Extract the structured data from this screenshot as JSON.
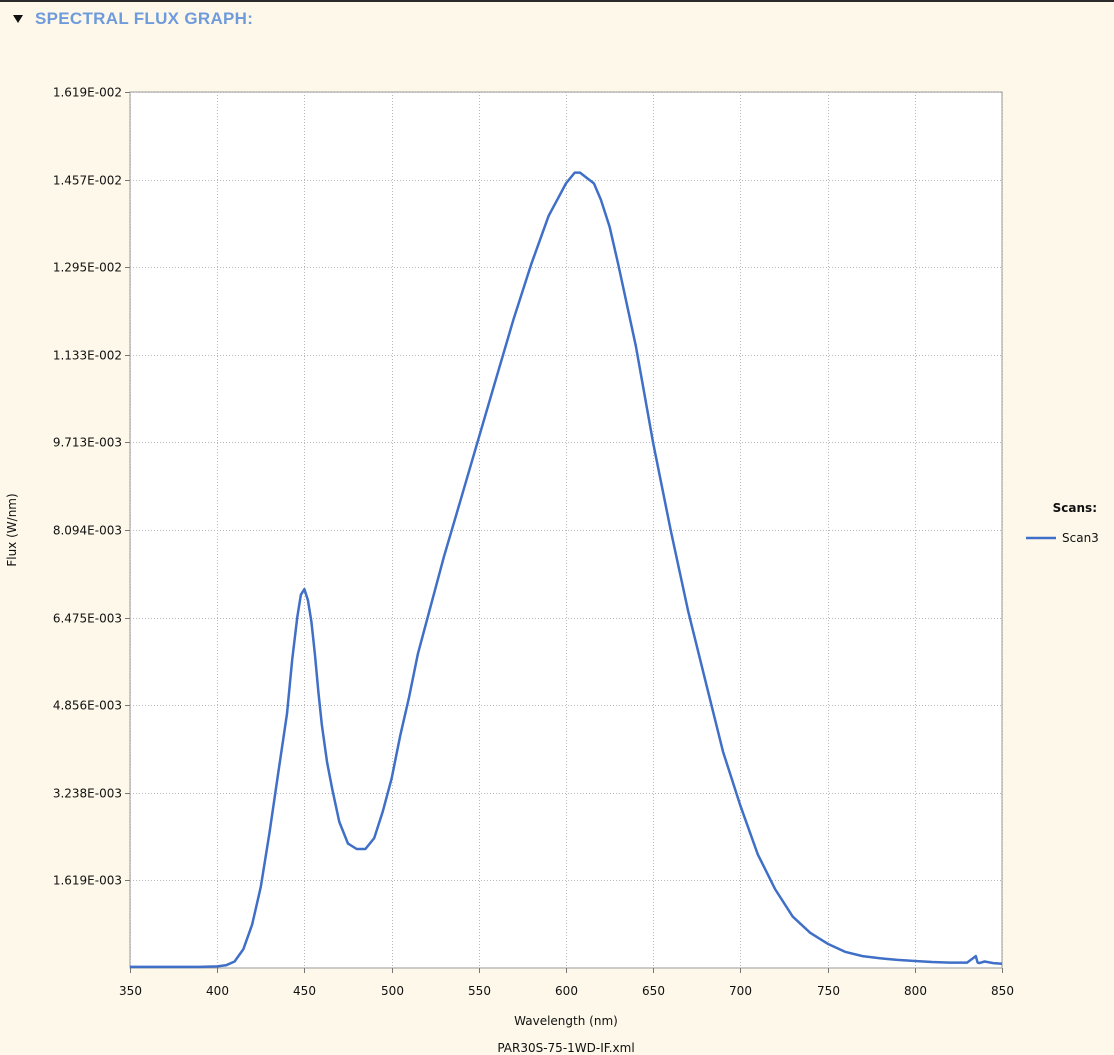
{
  "section": {
    "title": "SPECTRAL FLUX GRAPH:"
  },
  "chart_data": {
    "type": "line",
    "title": "",
    "xlabel": "Wavelength (nm)",
    "ylabel": "Flux (W/nm)",
    "caption": "PAR30S-75-1WD-IF.xml",
    "xlim": [
      350,
      850
    ],
    "ylim": [
      0,
      0.01619
    ],
    "x_ticks": [
      350,
      400,
      450,
      500,
      550,
      600,
      650,
      700,
      750,
      800,
      850
    ],
    "y_ticks": [
      0.001619,
      0.003238,
      0.004856,
      0.006475,
      0.008094,
      0.009713,
      0.01133,
      0.01295,
      0.01457,
      0.01619
    ],
    "y_tick_labels": [
      "1.619E-003",
      "3.238E-003",
      "4.856E-003",
      "6.475E-003",
      "8.094E-003",
      "9.713E-003",
      "1.133E-002",
      "1.295E-002",
      "1.457E-002",
      "1.619E-002"
    ],
    "grid": true,
    "legend_title": "Scans:",
    "legend_position": "right",
    "series": [
      {
        "name": "Scan3",
        "color": "#3f6fc7",
        "x": [
          350,
          360,
          370,
          380,
          390,
          400,
          405,
          410,
          415,
          420,
          425,
          430,
          435,
          440,
          443,
          446,
          448,
          450,
          452,
          454,
          456,
          458,
          460,
          463,
          466,
          470,
          475,
          480,
          485,
          490,
          495,
          500,
          505,
          510,
          515,
          520,
          530,
          540,
          550,
          560,
          570,
          580,
          590,
          595,
          600,
          605,
          608,
          612,
          616,
          620,
          625,
          630,
          640,
          650,
          660,
          670,
          680,
          690,
          700,
          710,
          720,
          730,
          740,
          750,
          760,
          770,
          780,
          790,
          800,
          810,
          820,
          830,
          835,
          836,
          837,
          840,
          845,
          850
        ],
        "y": [
          2e-05,
          2e-05,
          2e-05,
          2e-05,
          2e-05,
          3e-05,
          5e-05,
          0.00012,
          0.00035,
          0.0008,
          0.0015,
          0.0025,
          0.0036,
          0.0047,
          0.0057,
          0.0065,
          0.0069,
          0.007,
          0.0068,
          0.0064,
          0.0058,
          0.0051,
          0.0045,
          0.0038,
          0.0033,
          0.0027,
          0.0023,
          0.0022,
          0.0022,
          0.0024,
          0.0029,
          0.0035,
          0.0043,
          0.005,
          0.0058,
          0.0064,
          0.0076,
          0.0087,
          0.0098,
          0.0109,
          0.012,
          0.013,
          0.0139,
          0.0142,
          0.0145,
          0.0147,
          0.0147,
          0.0146,
          0.0145,
          0.0142,
          0.0137,
          0.013,
          0.0115,
          0.0097,
          0.0081,
          0.0066,
          0.0053,
          0.004,
          0.003,
          0.0021,
          0.00145,
          0.00095,
          0.00065,
          0.00045,
          0.0003,
          0.00022,
          0.00018,
          0.00015,
          0.00013,
          0.00011,
          0.0001,
          0.0001,
          0.00022,
          0.0001,
          9e-05,
          0.00012,
          9e-05,
          8e-05
        ]
      }
    ]
  }
}
